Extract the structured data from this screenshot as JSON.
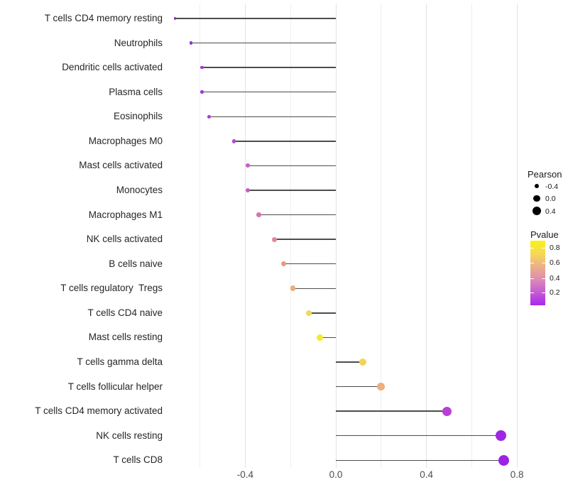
{
  "chart_data": {
    "type": "scatter",
    "variant": "lollipop",
    "title": "",
    "xlabel": "",
    "ylabel": "",
    "xlim": [
      -0.79,
      0.87
    ],
    "x_major_ticks": [
      -0.4,
      0.0,
      0.4,
      0.8
    ],
    "x_minor_gridlines": [
      -0.6,
      -0.2,
      0.2,
      0.6
    ],
    "grid": true,
    "background": "#ffffff",
    "stick_color": "#4d4d4d",
    "points": [
      {
        "label": "T cells CD4 memory resting",
        "pearson": -0.71,
        "color": "#9229db"
      },
      {
        "label": "Neutrophils",
        "pearson": -0.64,
        "color": "#9b2fd9"
      },
      {
        "label": "Dendritic cells activated",
        "pearson": -0.59,
        "color": "#a235d6"
      },
      {
        "label": "Plasma cells",
        "pearson": -0.59,
        "color": "#a235d6"
      },
      {
        "label": "Eosinophils",
        "pearson": -0.56,
        "color": "#a93ed4"
      },
      {
        "label": "Macrophages M0",
        "pearson": -0.45,
        "color": "#b14ad0"
      },
      {
        "label": "Mast cells activated",
        "pearson": -0.39,
        "color": "#c35ec6"
      },
      {
        "label": "Monocytes",
        "pearson": -0.39,
        "color": "#c35ec6"
      },
      {
        "label": "Macrophages M1",
        "pearson": -0.34,
        "color": "#d176b2"
      },
      {
        "label": "NK cells activated",
        "pearson": -0.27,
        "color": "#dd8a93"
      },
      {
        "label": "B cells naive",
        "pearson": -0.23,
        "color": "#e59b82"
      },
      {
        "label": "T cells regulatory  Tregs",
        "pearson": -0.19,
        "color": "#ecac7b"
      },
      {
        "label": "T cells CD4 naive",
        "pearson": -0.12,
        "color": "#f0d95c"
      },
      {
        "label": "Mast cells resting",
        "pearson": -0.07,
        "color": "#f4eb2d"
      },
      {
        "label": "T cells gamma delta",
        "pearson": 0.12,
        "color": "#f2d355"
      },
      {
        "label": "T cells follicular helper",
        "pearson": 0.2,
        "color": "#ecaf7d"
      },
      {
        "label": "T cells CD4 memory activated",
        "pearson": 0.49,
        "color": "#b93fd6"
      },
      {
        "label": "NK cells resting",
        "pearson": 0.73,
        "color": "#9f27e2"
      },
      {
        "label": "T cells CD8",
        "pearson": 0.74,
        "color": "#9d22e5"
      }
    ],
    "legend": {
      "size": {
        "title": "Pearson",
        "entries": [
          {
            "label": "-0.4",
            "value": -0.4
          },
          {
            "label": "0.0",
            "value": 0.0
          },
          {
            "label": "0.4",
            "value": 0.4
          }
        ],
        "dot_color": "#000000"
      },
      "color": {
        "title": "Pvalue",
        "ticks": [
          {
            "label": "0.8",
            "frac_from_top": 0.11
          },
          {
            "label": "0.6",
            "frac_from_top": 0.345
          },
          {
            "label": "0.4",
            "frac_from_top": 0.58
          },
          {
            "label": "0.2",
            "frac_from_top": 0.8
          }
        ],
        "gradient_top_to_bottom": [
          "#faf214",
          "#f6d957",
          "#edaf86",
          "#dc8bb4",
          "#c55cd4",
          "#a826ee"
        ]
      }
    }
  }
}
